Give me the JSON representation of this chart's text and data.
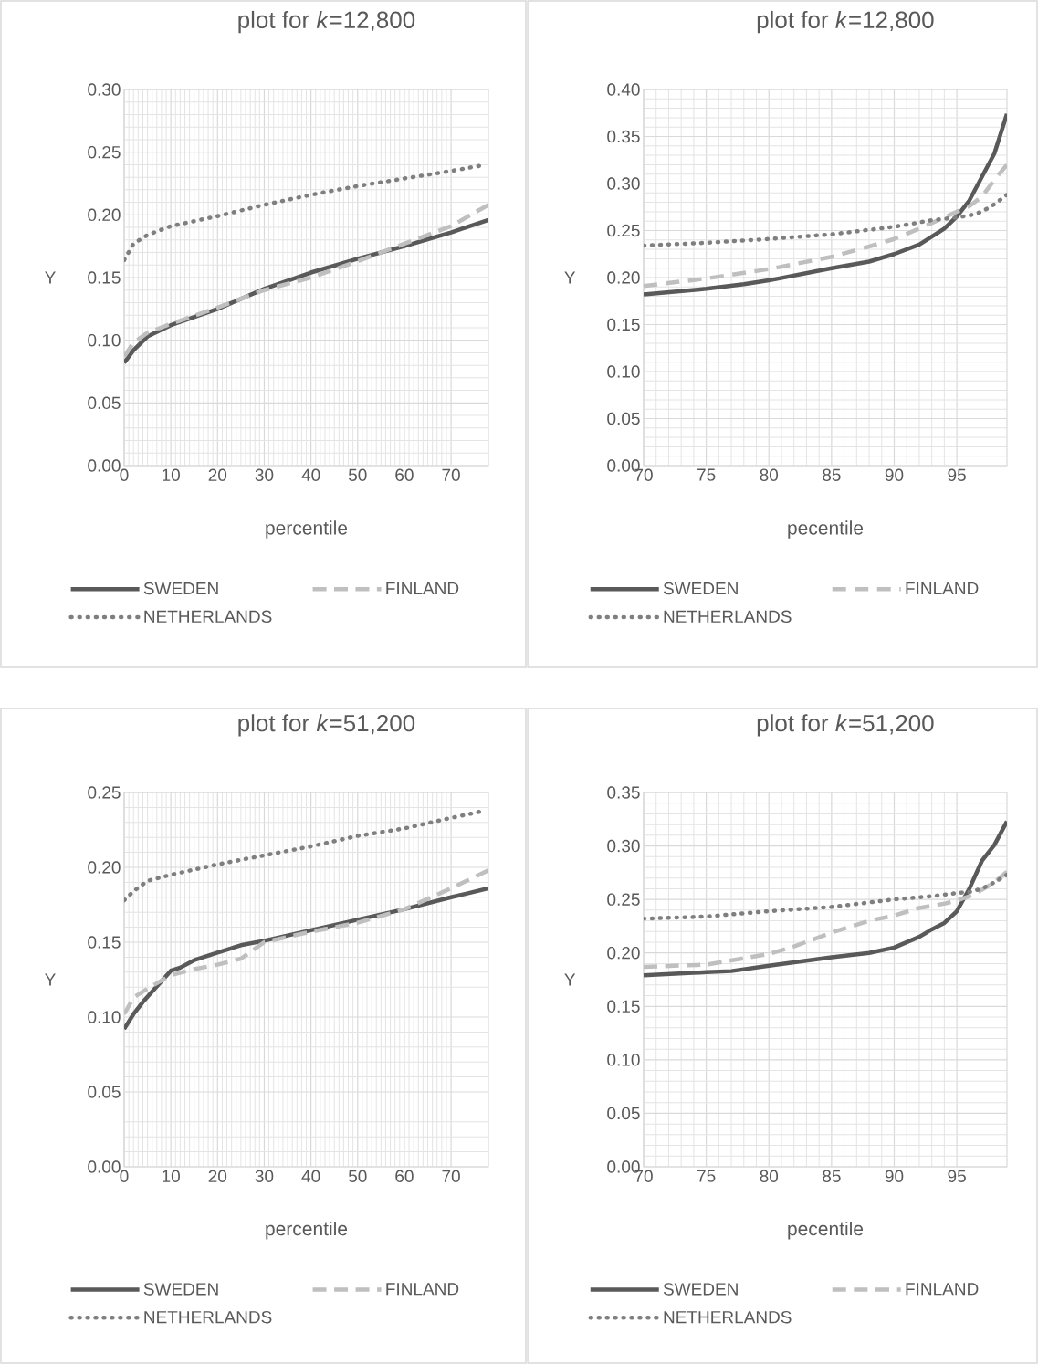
{
  "chart_data": [
    {
      "type": "line",
      "title": "plot for *k*=12,800",
      "xlabel": "percentile",
      "ylabel": "Y",
      "xlim": [
        0,
        78
      ],
      "xticks": [
        0,
        10,
        20,
        30,
        40,
        50,
        60,
        70
      ],
      "ylim": [
        0,
        0.3
      ],
      "yticks": [
        {
          "value": 0,
          "label": "0.00"
        },
        {
          "value": 0.05,
          "label": "0.05"
        },
        {
          "value": 0.1,
          "label": "0.10"
        },
        {
          "value": 0.15,
          "label": "0.15"
        },
        {
          "value": 0.2,
          "label": "0.20"
        },
        {
          "value": 0.25,
          "label": "0.25"
        },
        {
          "value": 0.3,
          "label": "0.30"
        }
      ],
      "grid": true,
      "legend": "bottom",
      "series": [
        {
          "name": "SWEDEN",
          "color": "#595959",
          "line_style": "solid",
          "x": [
            0,
            2,
            5,
            10,
            20,
            30,
            40,
            50,
            60,
            70,
            78
          ],
          "values": [
            0.082,
            0.092,
            0.103,
            0.112,
            0.125,
            0.141,
            0.154,
            0.165,
            0.175,
            0.186,
            0.196
          ]
        },
        {
          "name": "FINLAND",
          "color": "#bfbfbf",
          "line_style": "dashed",
          "x": [
            0,
            2,
            5,
            10,
            20,
            30,
            40,
            50,
            60,
            70,
            78
          ],
          "values": [
            0.087,
            0.098,
            0.106,
            0.113,
            0.126,
            0.14,
            0.15,
            0.163,
            0.177,
            0.191,
            0.208
          ]
        },
        {
          "name": "NETHERLANDS",
          "color": "#7f7f7f",
          "line_style": "dotted",
          "x": [
            0,
            2,
            5,
            10,
            20,
            30,
            40,
            50,
            60,
            70,
            76
          ],
          "values": [
            0.164,
            0.177,
            0.184,
            0.191,
            0.199,
            0.208,
            0.216,
            0.223,
            0.229,
            0.235,
            0.239
          ]
        }
      ]
    },
    {
      "type": "line",
      "title": "plot for *k*=12,800",
      "xlabel": "pecentile",
      "ylabel": "Y",
      "xlim": [
        70,
        99
      ],
      "xticks": [
        70,
        75,
        80,
        85,
        90,
        95
      ],
      "ylim": [
        0,
        0.4
      ],
      "yticks": [
        {
          "value": 0,
          "label": "0.00"
        },
        {
          "value": 0.05,
          "label": "0.05"
        },
        {
          "value": 0.1,
          "label": "0.10"
        },
        {
          "value": 0.15,
          "label": "0.15"
        },
        {
          "value": 0.2,
          "label": "0.20"
        },
        {
          "value": 0.25,
          "label": "0.25"
        },
        {
          "value": 0.3,
          "label": "0.30"
        },
        {
          "value": 0.35,
          "label": "0.35"
        },
        {
          "value": 0.4,
          "label": "0.40"
        }
      ],
      "grid": true,
      "legend": "bottom",
      "series": [
        {
          "name": "SWEDEN",
          "color": "#595959",
          "line_style": "solid",
          "x": [
            70,
            75,
            78,
            80,
            85,
            88,
            90,
            92,
            94,
            95,
            96,
            97,
            98,
            99
          ],
          "values": [
            0.182,
            0.188,
            0.193,
            0.197,
            0.21,
            0.217,
            0.225,
            0.235,
            0.252,
            0.265,
            0.282,
            0.307,
            0.332,
            0.374
          ]
        },
        {
          "name": "FINLAND",
          "color": "#bfbfbf",
          "line_style": "dashed",
          "x": [
            70,
            75,
            80,
            85,
            88,
            90,
            92,
            94,
            95,
            96,
            97,
            98,
            99
          ],
          "values": [
            0.191,
            0.199,
            0.209,
            0.222,
            0.233,
            0.241,
            0.252,
            0.264,
            0.27,
            0.276,
            0.286,
            0.304,
            0.32
          ]
        },
        {
          "name": "NETHERLANDS",
          "color": "#7f7f7f",
          "line_style": "dotted",
          "x": [
            70,
            75,
            80,
            85,
            90,
            93,
            95,
            96,
            97,
            98,
            99
          ],
          "values": [
            0.234,
            0.237,
            0.241,
            0.246,
            0.254,
            0.261,
            0.264,
            0.266,
            0.27,
            0.278,
            0.288
          ]
        }
      ]
    },
    {
      "type": "line",
      "title": "plot for *k*=51,200",
      "xlabel": "percentile",
      "ylabel": "Y",
      "xlim": [
        0,
        78
      ],
      "xticks": [
        0,
        10,
        20,
        30,
        40,
        50,
        60,
        70
      ],
      "ylim": [
        0,
        0.25
      ],
      "yticks": [
        {
          "value": 0,
          "label": "0.00"
        },
        {
          "value": 0.05,
          "label": "0.05"
        },
        {
          "value": 0.1,
          "label": "0.10"
        },
        {
          "value": 0.15,
          "label": "0.15"
        },
        {
          "value": 0.2,
          "label": "0.20"
        },
        {
          "value": 0.25,
          "label": "0.25"
        }
      ],
      "grid": true,
      "legend": "bottom",
      "series": [
        {
          "name": "SWEDEN",
          "color": "#595959",
          "line_style": "solid",
          "x": [
            0,
            2,
            4,
            6,
            8,
            10,
            12,
            15,
            20,
            25,
            30,
            40,
            50,
            60,
            70,
            78
          ],
          "values": [
            0.092,
            0.102,
            0.11,
            0.117,
            0.124,
            0.131,
            0.133,
            0.138,
            0.143,
            0.148,
            0.151,
            0.158,
            0.165,
            0.172,
            0.18,
            0.186
          ]
        },
        {
          "name": "FINLAND",
          "color": "#bfbfbf",
          "line_style": "dashed",
          "x": [
            0,
            2,
            5,
            10,
            15,
            20,
            25,
            30,
            40,
            50,
            60,
            70,
            78
          ],
          "values": [
            0.102,
            0.113,
            0.119,
            0.128,
            0.132,
            0.135,
            0.139,
            0.15,
            0.157,
            0.163,
            0.172,
            0.186,
            0.198
          ]
        },
        {
          "name": "NETHERLANDS",
          "color": "#7f7f7f",
          "line_style": "dotted",
          "x": [
            0,
            2,
            5,
            10,
            20,
            30,
            40,
            50,
            60,
            70,
            76
          ],
          "values": [
            0.178,
            0.184,
            0.191,
            0.195,
            0.202,
            0.208,
            0.214,
            0.221,
            0.226,
            0.233,
            0.237
          ]
        }
      ]
    },
    {
      "type": "line",
      "title": "plot for *k*=51,200",
      "xlabel": "pecentile",
      "ylabel": "Y",
      "xlim": [
        70,
        99
      ],
      "xticks": [
        70,
        75,
        80,
        85,
        90,
        95
      ],
      "ylim": [
        0,
        0.35
      ],
      "yticks": [
        {
          "value": 0,
          "label": "0.00"
        },
        {
          "value": 0.05,
          "label": "0.05"
        },
        {
          "value": 0.1,
          "label": "0.10"
        },
        {
          "value": 0.15,
          "label": "0.15"
        },
        {
          "value": 0.2,
          "label": "0.20"
        },
        {
          "value": 0.25,
          "label": "0.25"
        },
        {
          "value": 0.3,
          "label": "0.30"
        },
        {
          "value": 0.35,
          "label": "0.35"
        }
      ],
      "grid": true,
      "legend": "bottom",
      "series": [
        {
          "name": "SWEDEN",
          "color": "#595959",
          "line_style": "solid",
          "x": [
            70,
            75,
            77,
            80,
            85,
            88,
            90,
            92,
            93,
            94,
            95,
            96,
            97,
            98,
            99
          ],
          "values": [
            0.179,
            0.182,
            0.183,
            0.188,
            0.196,
            0.2,
            0.205,
            0.215,
            0.222,
            0.228,
            0.239,
            0.26,
            0.286,
            0.301,
            0.323
          ]
        },
        {
          "name": "FINLAND",
          "color": "#bfbfbf",
          "line_style": "dashed",
          "x": [
            70,
            75,
            78,
            80,
            82,
            85,
            88,
            90,
            92,
            94,
            95,
            96,
            97,
            98,
            99
          ],
          "values": [
            0.187,
            0.189,
            0.195,
            0.199,
            0.206,
            0.219,
            0.23,
            0.235,
            0.242,
            0.246,
            0.249,
            0.253,
            0.259,
            0.266,
            0.276
          ]
        },
        {
          "name": "NETHERLANDS",
          "color": "#7f7f7f",
          "line_style": "dotted",
          "x": [
            70,
            75,
            80,
            85,
            90,
            93,
            95,
            96,
            97,
            98,
            99
          ],
          "values": [
            0.232,
            0.234,
            0.239,
            0.243,
            0.25,
            0.253,
            0.256,
            0.257,
            0.26,
            0.266,
            0.273
          ]
        }
      ]
    }
  ]
}
